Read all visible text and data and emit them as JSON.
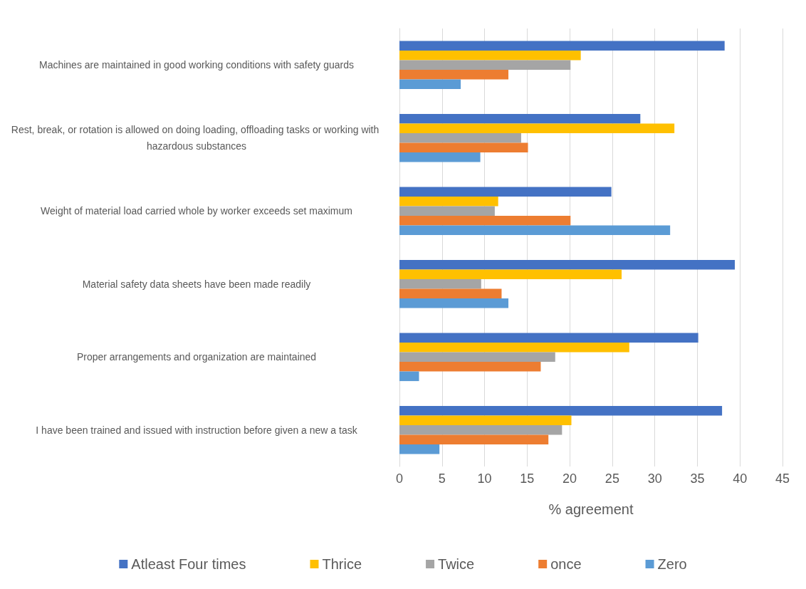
{
  "chart_data": {
    "type": "bar",
    "orientation": "horizontal",
    "xlabel": "% agreement",
    "categories": [
      "Machines are maintained in good working conditions with safety guards",
      "Rest, break, or rotation is allowed on doing loading, offloading tasks or working with hazardous substances",
      "Weight of material load carried whole by worker exceeds set maximum",
      "Material safety data sheets have been made readily",
      "Proper arrangements and organization are maintained",
      "I have been trained and issued with instruction before given a new a task"
    ],
    "series": [
      {
        "name": "Atleast Four times",
        "color": "#4472c4",
        "values": [
          38.2,
          28.3,
          24.9,
          39.4,
          35.1,
          37.9
        ]
      },
      {
        "name": "Thrice",
        "color": "#ffc000",
        "values": [
          21.3,
          32.3,
          11.6,
          26.1,
          27.0,
          20.2
        ]
      },
      {
        "name": "Twice",
        "color": "#a5a5a5",
        "values": [
          20.1,
          14.3,
          11.2,
          9.6,
          18.3,
          19.1
        ]
      },
      {
        "name": "once",
        "color": "#ed7d31",
        "values": [
          12.8,
          15.1,
          20.1,
          12.0,
          16.6,
          17.5
        ]
      },
      {
        "name": "Zero",
        "color": "#5b9bd5",
        "values": [
          7.2,
          9.5,
          31.8,
          12.8,
          2.3,
          4.7
        ]
      }
    ],
    "xlim": [
      0,
      45
    ],
    "xticks": [
      0,
      5,
      10,
      15,
      20,
      25,
      30,
      35,
      40,
      45
    ],
    "grid": "x",
    "legend": "bottom"
  }
}
